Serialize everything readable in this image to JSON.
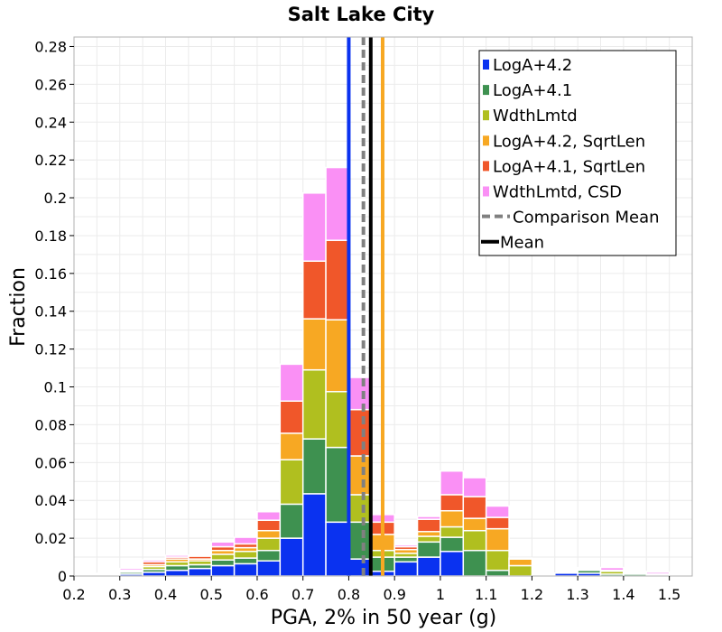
{
  "chart_data": {
    "type": "bar",
    "stacked": true,
    "title": "Salt Lake City",
    "xlabel": "PGA, 2% in 50 year (g)",
    "ylabel": "Fraction",
    "xlim": [
      0.2,
      1.55
    ],
    "ylim": [
      0,
      0.285
    ],
    "bin_width": 0.05,
    "grid": true,
    "legend_position": "top-right",
    "x_ticks": [
      0.2,
      0.3,
      0.4,
      0.5,
      0.6,
      0.7,
      0.8,
      0.9,
      1.0,
      1.1,
      1.2,
      1.3,
      1.4,
      1.5
    ],
    "x_tick_labels": [
      "0.2",
      "0.3",
      "0.4",
      "0.5",
      "0.6",
      "0.7",
      "0.8",
      "0.9",
      "1",
      "1.1",
      "1.2",
      "1.3",
      "1.4",
      "1.5"
    ],
    "y_ticks": [
      0,
      0.02,
      0.04,
      0.06,
      0.08,
      0.1,
      0.12,
      0.14,
      0.16,
      0.18,
      0.2,
      0.22,
      0.24,
      0.26,
      0.28
    ],
    "y_tick_labels": [
      "0",
      "0.02",
      "0.04",
      "0.06",
      "0.08",
      "0.1",
      "0.12",
      "0.14",
      "0.16",
      "0.18",
      "0.2",
      "0.22",
      "0.24",
      "0.26",
      "0.28"
    ],
    "bin_centers": [
      0.275,
      0.325,
      0.375,
      0.425,
      0.475,
      0.525,
      0.575,
      0.625,
      0.675,
      0.725,
      0.775,
      0.825,
      0.875,
      0.925,
      0.975,
      1.025,
      1.075,
      1.125,
      1.175,
      1.225,
      1.275,
      1.325,
      1.375,
      1.425,
      1.475,
      1.525
    ],
    "series": [
      {
        "name": "LogA+4.2",
        "color": "#0a32f0",
        "values": [
          0.0005,
          0.001,
          0.002,
          0.003,
          0.004,
          0.0055,
          0.0065,
          0.008,
          0.02,
          0.0435,
          0.0285,
          0.009,
          0.0025,
          0.0075,
          0.01,
          0.013,
          0,
          0,
          0,
          0,
          0.0015,
          0.0015,
          0,
          0,
          0,
          0
        ]
      },
      {
        "name": "LogA+4.1",
        "color": "#3e9150",
        "values": [
          0.0005,
          0.001,
          0.0015,
          0.0025,
          0.002,
          0.003,
          0.003,
          0.0055,
          0.018,
          0.029,
          0.0395,
          0.0195,
          0.0075,
          0.0025,
          0.008,
          0.0075,
          0.0135,
          0.003,
          0,
          0,
          0,
          0.0015,
          0.001,
          0.001,
          0,
          0
        ]
      },
      {
        "name": "WdthLmtd",
        "color": "#b0bf1f",
        "values": [
          0,
          0.0005,
          0.0015,
          0.002,
          0.002,
          0.003,
          0.0035,
          0.0065,
          0.0235,
          0.0365,
          0.0295,
          0.0145,
          0.0035,
          0.002,
          0.003,
          0.0055,
          0.0105,
          0.0105,
          0.0055,
          0,
          0,
          0.0005,
          0.0015,
          0.0005,
          0.0005,
          0
        ]
      },
      {
        "name": "LogA+4.2, SqrtLen",
        "color": "#f7a823",
        "values": [
          0,
          0.0005,
          0.001,
          0.0015,
          0.001,
          0.002,
          0.002,
          0.004,
          0.014,
          0.027,
          0.038,
          0.0205,
          0.0085,
          0.002,
          0.0025,
          0.0085,
          0.0065,
          0.0115,
          0.0035,
          0.0005,
          0,
          0.0005,
          0.0005,
          0.0005,
          0.0005,
          0.0005
        ]
      },
      {
        "name": "LogA+4.1, SqrtLen",
        "color": "#f0572a",
        "values": [
          0,
          0,
          0.0015,
          0.001,
          0.0015,
          0.002,
          0.002,
          0.0055,
          0.017,
          0.0305,
          0.042,
          0.0245,
          0.0065,
          0.0015,
          0.0065,
          0.0085,
          0.0115,
          0.006,
          0.0005,
          0,
          0,
          0.0005,
          0,
          0,
          0,
          0
        ]
      },
      {
        "name": "WdthLmtd, CSD",
        "color": "#fa90f5",
        "values": [
          0.0005,
          0.001,
          0.001,
          0.001,
          0.0005,
          0.0025,
          0.0035,
          0.0045,
          0.0195,
          0.036,
          0.0385,
          0.017,
          0.004,
          0.001,
          0.0015,
          0.0125,
          0.01,
          0.006,
          0,
          0,
          0,
          0,
          0.0015,
          0.0005,
          0.001,
          0
        ]
      }
    ],
    "reference_lines": [
      {
        "name": "LogA+4.2 mean",
        "x": 0.8,
        "color": "#0a32f0",
        "style": "solid"
      },
      {
        "name": "Comparison Mean",
        "x": 0.832,
        "color": "#808080",
        "style": "dashed"
      },
      {
        "name": "Mean",
        "x": 0.848,
        "color": "#000000",
        "style": "solid"
      },
      {
        "name": "LogA+4.2, SqrtLen mean",
        "x": 0.874,
        "color": "#f7a823",
        "style": "solid"
      }
    ],
    "legend": [
      {
        "label": "LogA+4.2",
        "color": "#0a32f0",
        "kind": "square"
      },
      {
        "label": "LogA+4.1",
        "color": "#3e9150",
        "kind": "square"
      },
      {
        "label": "WdthLmtd",
        "color": "#b0bf1f",
        "kind": "square"
      },
      {
        "label": "LogA+4.2, SqrtLen",
        "color": "#f7a823",
        "kind": "square"
      },
      {
        "label": "LogA+4.1, SqrtLen",
        "color": "#f0572a",
        "kind": "square"
      },
      {
        "label": "WdthLmtd, CSD",
        "color": "#fa90f5",
        "kind": "square"
      },
      {
        "label": "Comparison Mean",
        "color": "#808080",
        "kind": "dashed"
      },
      {
        "label": "Mean",
        "color": "#000000",
        "kind": "line"
      }
    ]
  }
}
